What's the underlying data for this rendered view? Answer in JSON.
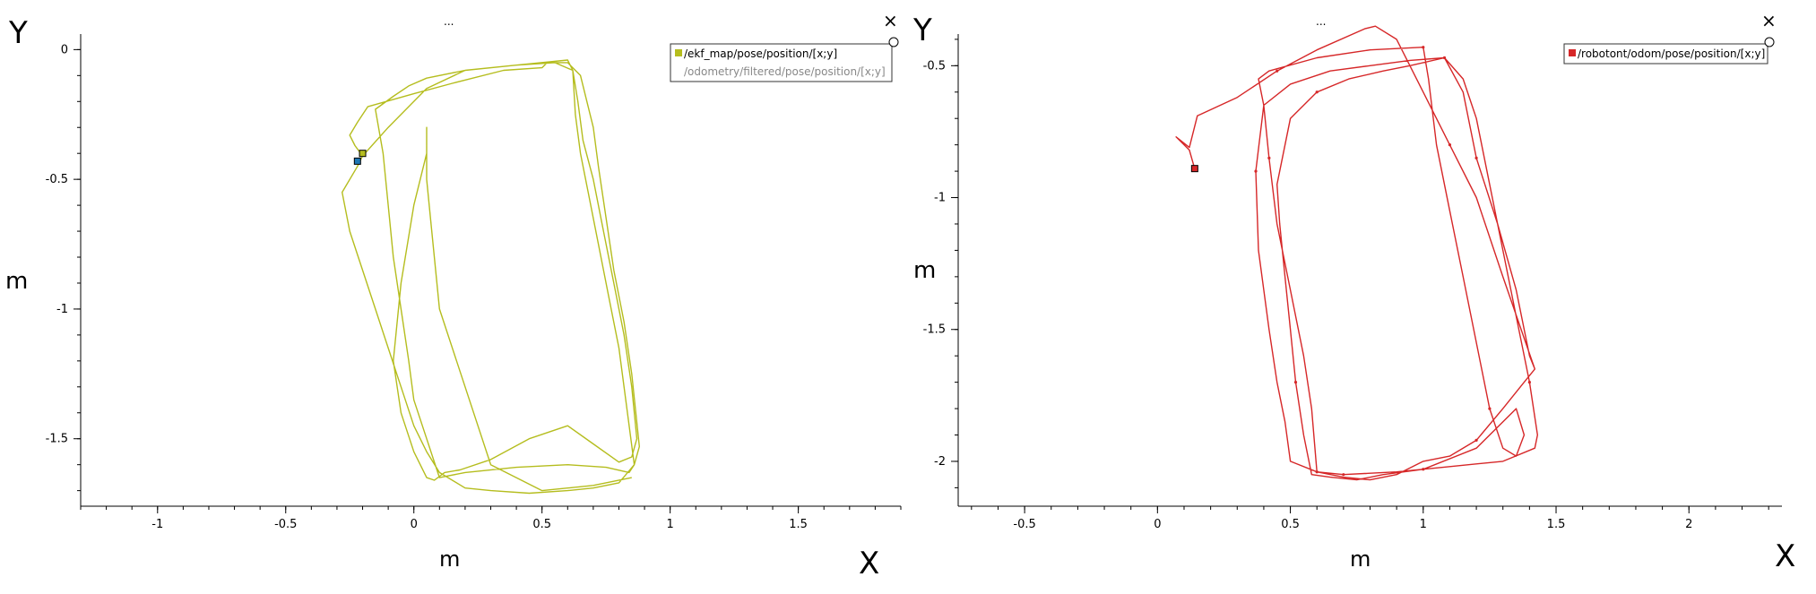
{
  "colors": {
    "ekf": "#b5bd1e",
    "odometry": "#888888",
    "robotont": "#d62728",
    "cursor_blue": "#1f77b4"
  },
  "panels": [
    {
      "menu_label": "...",
      "close_label": "×",
      "x_axis_letter": "X",
      "y_axis_letter": "Y",
      "x_unit_label": "m",
      "y_unit_label": "m"
    },
    {
      "menu_label": "...",
      "close_label": "×",
      "x_axis_letter": "X",
      "y_axis_letter": "Y",
      "x_unit_label": "m",
      "y_unit_label": "m"
    }
  ],
  "chart_data": [
    {
      "type": "line",
      "title": "",
      "xlabel": "m",
      "ylabel": "m",
      "xlim": [
        -1.3,
        1.9
      ],
      "ylim": [
        -1.76,
        0.06
      ],
      "x_ticks": [
        -1,
        -0.5,
        0,
        0.5,
        1,
        1.5
      ],
      "x_tick_labels": [
        "-1",
        "-0.5",
        "0",
        "0.5",
        "1",
        "1.5"
      ],
      "y_ticks": [
        0,
        -0.5,
        -1,
        -1.5
      ],
      "y_tick_labels": [
        "0",
        "-0.5",
        "-1",
        "-1.5"
      ],
      "legend_position": "top-right",
      "grid": false,
      "series": [
        {
          "name": "/ekf_map/pose/position/[x;y]",
          "color": "#b5bd1e",
          "x": [
            -0.2,
            -0.23,
            -0.25,
            -0.22,
            -0.18,
            0,
            0.15,
            0.35,
            0.5,
            0.52,
            0.6,
            0.65,
            0.7,
            0.72,
            0.75,
            0.78,
            0.82,
            0.85,
            0.88,
            0.86,
            0.8,
            0.7,
            0.6,
            0.45,
            0.3,
            0.2,
            0.1,
            0.05,
            0,
            -0.05,
            -0.1,
            -0.15,
            -0.2,
            -0.25,
            -0.28,
            -0.22,
            -0.2,
            -0.1,
            0.05,
            0.2,
            0.4,
            0.6,
            0.62,
            0.63,
            0.65,
            0.68,
            0.72,
            0.76,
            0.8,
            0.82,
            0.84,
            0.86,
            0.84,
            0.75,
            0.6,
            0.4,
            0.2,
            0.1,
            0.05,
            0,
            -0.02,
            -0.05,
            -0.08,
            -0.1,
            -0.12,
            -0.15,
            -0.08,
            -0.02,
            0.05,
            0.2,
            0.4,
            0.55,
            0.62,
            0.64,
            0.66,
            0.7,
            0.74,
            0.78,
            0.82,
            0.85,
            0.87,
            0.85,
            0.8,
            0.7,
            0.6,
            0.45,
            0.3,
            0.18,
            0.12,
            0.08,
            0.05,
            0.0,
            -0.05,
            -0.08,
            -0.05,
            0.0,
            0.05,
            0.05,
            0.05,
            0.07,
            0.1,
            0.2,
            0.3,
            0.5,
            0.7,
            0.85
          ],
          "y": [
            -0.41,
            -0.37,
            -0.33,
            -0.28,
            -0.22,
            -0.17,
            -0.13,
            -0.08,
            -0.07,
            -0.05,
            -0.05,
            -0.1,
            -0.3,
            -0.45,
            -0.65,
            -0.85,
            -1.05,
            -1.25,
            -1.53,
            -1.6,
            -1.67,
            -1.69,
            -1.7,
            -1.71,
            -1.7,
            -1.69,
            -1.63,
            -1.55,
            -1.45,
            -1.3,
            -1.15,
            -1.0,
            -0.85,
            -0.7,
            -0.55,
            -0.45,
            -0.41,
            -0.3,
            -0.15,
            -0.08,
            -0.06,
            -0.04,
            -0.08,
            -0.25,
            -0.4,
            -0.55,
            -0.75,
            -0.95,
            -1.15,
            -1.3,
            -1.45,
            -1.6,
            -1.63,
            -1.61,
            -1.6,
            -1.61,
            -1.63,
            -1.65,
            -1.5,
            -1.35,
            -1.2,
            -1.0,
            -0.8,
            -0.6,
            -0.4,
            -0.23,
            -0.18,
            -0.14,
            -0.11,
            -0.08,
            -0.06,
            -0.05,
            -0.08,
            -0.2,
            -0.35,
            -0.5,
            -0.7,
            -0.9,
            -1.1,
            -1.3,
            -1.5,
            -1.57,
            -1.59,
            -1.52,
            -1.45,
            -1.5,
            -1.58,
            -1.62,
            -1.63,
            -1.66,
            -1.65,
            -1.55,
            -1.4,
            -1.2,
            -0.9,
            -0.6,
            -0.4,
            -0.3,
            -0.5,
            -0.7,
            -1.0,
            -1.3,
            -1.6,
            -1.7,
            -1.68,
            -1.65
          ]
        },
        {
          "name": "/odometry/filtered/pose/position/[x;y]",
          "color": "#888888",
          "x": [],
          "y": []
        }
      ],
      "cursor_points": [
        {
          "series": "/ekf_map/pose/position/[x;y]",
          "x": -0.2,
          "y": -0.4,
          "color": "#b5bd1e"
        },
        {
          "series": "/odometry/filtered/pose/position/[x;y]",
          "x": -0.22,
          "y": -0.43,
          "color": "#1f77b4"
        }
      ]
    },
    {
      "type": "line",
      "title": "",
      "xlabel": "m",
      "ylabel": "m",
      "xlim": [
        -0.75,
        2.35
      ],
      "ylim": [
        -2.17,
        -0.38
      ],
      "x_ticks": [
        -0.5,
        0,
        0.5,
        1,
        1.5,
        2
      ],
      "x_tick_labels": [
        "-0.5",
        "0",
        "0.5",
        "1",
        "1.5",
        "2"
      ],
      "y_ticks": [
        -0.5,
        -1,
        -1.5,
        -2
      ],
      "y_tick_labels": [
        "-0.5",
        "-1",
        "-1.5",
        "-2"
      ],
      "legend_position": "top-right",
      "grid": false,
      "series": [
        {
          "name": "/robotont/odom/pose/position/[x;y]",
          "color": "#d62728",
          "x": [
            0.14,
            0.12,
            0.07,
            0.12,
            0.15,
            0.3,
            0.45,
            0.6,
            0.78,
            0.82,
            0.9,
            1.0,
            1.1,
            1.2,
            1.3,
            1.42,
            1.38,
            1.3,
            1.2,
            1.1,
            1.0,
            0.9,
            0.8,
            0.7,
            0.6,
            0.5,
            0.48,
            0.45,
            0.42,
            0.38,
            0.37,
            0.4,
            0.5,
            0.65,
            0.8,
            0.95,
            1.08,
            1.15,
            1.2,
            1.25,
            1.3,
            1.35,
            1.4,
            1.43,
            1.42,
            1.3,
            1.1,
            0.9,
            0.7,
            0.6,
            0.58,
            0.55,
            0.5,
            0.45,
            0.42,
            0.4,
            0.38,
            0.42,
            0.6,
            0.8,
            1.0,
            1.02,
            1.05,
            1.1,
            1.15,
            1.2,
            1.25,
            1.3,
            1.35,
            1.38,
            1.35,
            1.2,
            1.0,
            0.85,
            0.75,
            0.65,
            0.58,
            0.55,
            0.52,
            0.5,
            0.48,
            0.46,
            0.45,
            0.5,
            0.6,
            0.72,
            0.85,
            0.95,
            1.08,
            1.15,
            1.2,
            1.28,
            1.35,
            1.4,
            1.42
          ],
          "y": [
            -0.89,
            -0.82,
            -0.77,
            -0.81,
            -0.69,
            -0.62,
            -0.52,
            -0.44,
            -0.36,
            -0.35,
            -0.4,
            -0.6,
            -0.8,
            -1.0,
            -1.3,
            -1.65,
            -1.7,
            -1.8,
            -1.92,
            -1.98,
            -2.0,
            -2.05,
            -2.07,
            -2.06,
            -2.04,
            -2.0,
            -1.85,
            -1.7,
            -1.5,
            -1.2,
            -0.9,
            -0.65,
            -0.57,
            -0.52,
            -0.5,
            -0.48,
            -0.47,
            -0.55,
            -0.7,
            -0.95,
            -1.2,
            -1.45,
            -1.7,
            -1.9,
            -1.95,
            -2.0,
            -2.02,
            -2.04,
            -2.05,
            -2.04,
            -1.8,
            -1.6,
            -1.35,
            -1.1,
            -0.85,
            -0.65,
            -0.55,
            -0.52,
            -0.47,
            -0.44,
            -0.43,
            -0.55,
            -0.8,
            -1.05,
            -1.3,
            -1.55,
            -1.8,
            -1.95,
            -1.98,
            -1.9,
            -1.8,
            -1.95,
            -2.03,
            -2.05,
            -2.07,
            -2.06,
            -2.05,
            -1.9,
            -1.7,
            -1.5,
            -1.3,
            -1.1,
            -0.95,
            -0.7,
            -0.6,
            -0.55,
            -0.52,
            -0.5,
            -0.47,
            -0.6,
            -0.85,
            -1.1,
            -1.35,
            -1.6,
            -1.65
          ]
        }
      ],
      "cursor_points": [
        {
          "series": "/robotont/odom/pose/position/[x;y]",
          "x": 0.14,
          "y": -0.89,
          "color": "#d62728"
        }
      ]
    }
  ]
}
